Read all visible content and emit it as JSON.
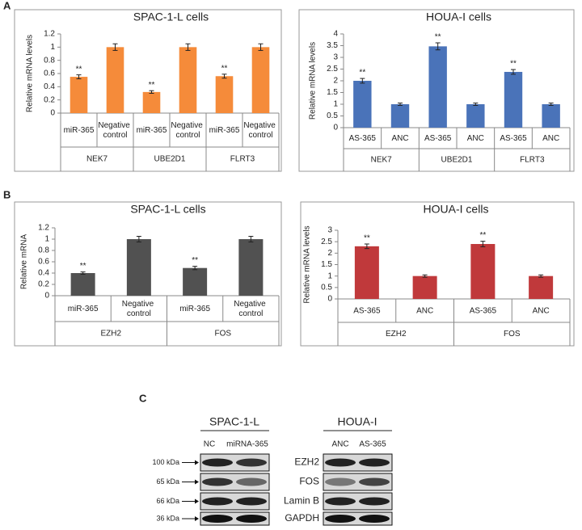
{
  "panels": {
    "a": "A",
    "b": "B",
    "c": "C"
  },
  "chart_data": [
    {
      "type": "bar",
      "title": "SPAC-1-L cells",
      "y_label": "Relative mRNA levels",
      "categories": [
        "miR-365",
        "Negative control",
        "miR-365",
        "Negative control",
        "miR-365",
        "Negative control"
      ],
      "groups": [
        "NEK7",
        "UBE2D1",
        "FLRT3"
      ],
      "values": [
        0.55,
        1,
        0.32,
        1,
        0.56,
        1
      ],
      "errors": [
        0.03,
        0.05,
        0.02,
        0.05,
        0.03,
        0.05
      ],
      "significance": [
        "**",
        null,
        "**",
        null,
        "**",
        null
      ],
      "color": "#f58b3a",
      "ylim": [
        0,
        1.2
      ],
      "yticks": [
        0,
        0.2,
        0.4,
        0.6,
        0.8,
        1,
        1.2
      ]
    },
    {
      "type": "bar",
      "title": "HOUA-I cells",
      "y_label": "Relative mRNA levels",
      "categories": [
        "AS-365",
        "ANC",
        "AS-365",
        "ANC",
        "AS-365",
        "ANC"
      ],
      "groups": [
        "NEK7",
        "UBE2D1",
        "FLRT3"
      ],
      "values": [
        2.0,
        1.0,
        3.47,
        1.0,
        2.38,
        1.0
      ],
      "errors": [
        0.1,
        0.05,
        0.15,
        0.05,
        0.1,
        0.05
      ],
      "significance": [
        "**",
        null,
        "**",
        null,
        "**",
        null
      ],
      "color": "#4a73b9",
      "ylim": [
        0,
        4
      ],
      "yticks": [
        0,
        0.5,
        1,
        1.5,
        2,
        2.5,
        3,
        3.5,
        4
      ]
    },
    {
      "type": "bar",
      "title": "SPAC-1-L cells",
      "y_label": "Relative mRNA",
      "categories": [
        "miR-365",
        "Negative control",
        "miR-365",
        "Negative control"
      ],
      "groups": [
        "EZH2",
        "FOS"
      ],
      "values": [
        0.4,
        1,
        0.49,
        1
      ],
      "errors": [
        0.02,
        0.05,
        0.03,
        0.05
      ],
      "significance": [
        "**",
        null,
        "**",
        null
      ],
      "color": "#515151",
      "ylim": [
        0,
        1.2
      ],
      "yticks": [
        0,
        0.2,
        0.4,
        0.6,
        0.8,
        1,
        1.2
      ]
    },
    {
      "type": "bar",
      "title": "HOUA-I cells",
      "y_label": "Relative mRNA levels",
      "categories": [
        "AS-365",
        "ANC",
        "AS-365",
        "ANC"
      ],
      "groups": [
        "EZH2",
        "FOS"
      ],
      "values": [
        2.3,
        1,
        2.4,
        1
      ],
      "errors": [
        0.1,
        0.05,
        0.12,
        0.05
      ],
      "significance": [
        "**",
        null,
        "**",
        null
      ],
      "color": "#c0393b",
      "ylim": [
        0,
        3
      ],
      "yticks": [
        0,
        0.5,
        1,
        1.5,
        2,
        2.5,
        3
      ]
    }
  ],
  "blot": {
    "left": {
      "title": "SPAC-1-L",
      "lanes": [
        "NC",
        "miRNA-365"
      ],
      "markers": [
        "100 kDa",
        "65 kDa",
        "66 kDa",
        "36 kDa"
      ]
    },
    "right": {
      "title": "HOUA-I",
      "lanes": [
        "ANC",
        "AS-365"
      ],
      "proteins": [
        "EZH2",
        "FOS",
        "Lamin B",
        "GAPDH"
      ]
    }
  }
}
